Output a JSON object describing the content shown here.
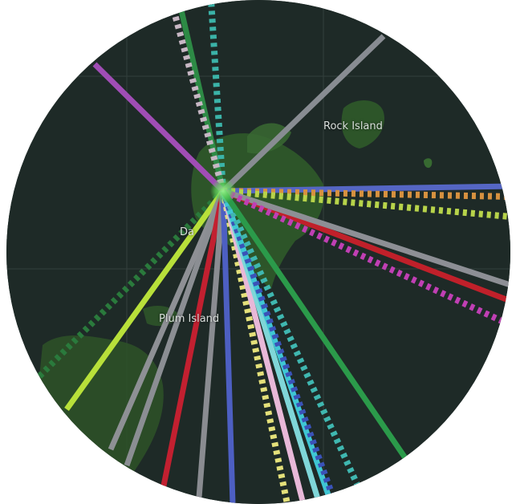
{
  "map": {
    "labels": {
      "rock_island": "Rock Island",
      "detroit_island": "Da",
      "plum_island": "Plum Island"
    },
    "colors": {
      "water": "#1e2a27",
      "land": "#2f5a2a",
      "land_bright": "#3d7a35",
      "grid": "#4a5653",
      "hub": "#6ee06a"
    },
    "routes": [
      {
        "color": "#2d8a45",
        "style": "solid"
      },
      {
        "color": "#3bb3a8",
        "style": "dashed"
      },
      {
        "color": "#c7b7c4",
        "style": "dashed"
      },
      {
        "color": "#a04db5",
        "style": "solid"
      },
      {
        "color": "#888c92",
        "style": "solid"
      },
      {
        "color": "#5566c4",
        "style": "solid"
      },
      {
        "color": "#d7913f",
        "style": "dashed"
      },
      {
        "color": "#b7d34a",
        "style": "dashed"
      },
      {
        "color": "#c0202a",
        "style": "solid"
      },
      {
        "color": "#8d8f95",
        "style": "solid"
      },
      {
        "color": "#c03fb4",
        "style": "dashed"
      },
      {
        "color": "#2a7a3c",
        "style": "dashed"
      },
      {
        "color": "#b8e03a",
        "style": "solid"
      },
      {
        "color": "#8e9095",
        "style": "solid"
      },
      {
        "color": "#8b8e93",
        "style": "solid"
      },
      {
        "color": "#c22030",
        "style": "solid"
      },
      {
        "color": "#8a8c91",
        "style": "solid"
      },
      {
        "color": "#4d5fc2",
        "style": "solid"
      },
      {
        "color": "#e4e07a",
        "style": "dashed"
      },
      {
        "color": "#e8b8d8",
        "style": "solid"
      },
      {
        "color": "#7fd6d8",
        "style": "solid"
      },
      {
        "color": "#3fc6d3",
        "style": "solid"
      },
      {
        "color": "#3a52b8",
        "style": "dashed"
      },
      {
        "color": "#3fb7b0",
        "style": "dashed"
      },
      {
        "color": "#2b9a4a",
        "style": "solid"
      }
    ]
  }
}
